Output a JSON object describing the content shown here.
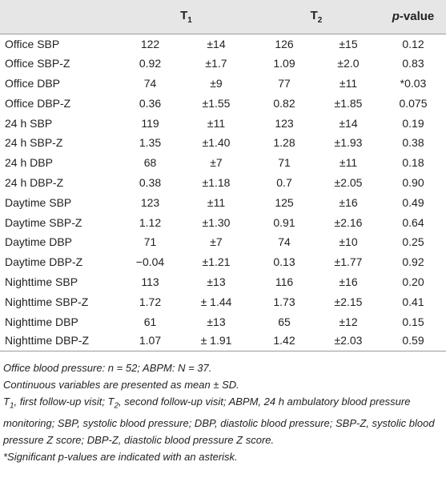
{
  "table": {
    "header": [
      {
        "main": "T",
        "sub": "1"
      },
      {
        "main": "T",
        "sub": "2"
      },
      {
        "italic": "p",
        "rest": "-value"
      }
    ],
    "rows": [
      [
        "Office SBP",
        "122",
        "±14",
        "126",
        "±15",
        "0.12"
      ],
      [
        "Office SBP-Z",
        "0.92",
        "±1.7",
        "1.09",
        "±2.0",
        "0.83"
      ],
      [
        "Office DBP",
        "74",
        "±9",
        "77",
        "±11",
        "*0.03"
      ],
      [
        "Office DBP-Z",
        "0.36",
        "±1.55",
        "0.82",
        "±1.85",
        "0.075"
      ],
      [
        "24 h SBP",
        "119",
        "±11",
        "123",
        "±14",
        "0.19"
      ],
      [
        "24 h SBP-Z",
        "1.35",
        "±1.40",
        "1.28",
        "±1.93",
        "0.38"
      ],
      [
        "24 h DBP",
        "68",
        "±7",
        "71",
        "±11",
        "0.18"
      ],
      [
        "24 h DBP-Z",
        "0.38",
        "±1.18",
        "0.7",
        "±2.05",
        "0.90"
      ],
      [
        "Daytime SBP",
        "123",
        "±11",
        "125",
        "±16",
        "0.49"
      ],
      [
        "Daytime SBP-Z",
        "1.12",
        "±1.30",
        "0.91",
        "±2.16",
        "0.64"
      ],
      [
        "Daytime DBP",
        "71",
        "±7",
        "74",
        "±10",
        "0.25"
      ],
      [
        "Daytime DBP-Z",
        "−0.04",
        "±1.21",
        "0.13",
        "±1.77",
        "0.92"
      ],
      [
        "Nighttime SBP",
        "113",
        "±13",
        "116",
        "±16",
        "0.20"
      ],
      [
        "Nighttime SBP-Z",
        "1.72",
        "± 1.44",
        "1.73",
        "±2.15",
        "0.41"
      ],
      [
        "Nighttime DBP",
        "61",
        "±13",
        "65",
        "±12",
        "0.15"
      ],
      [
        "Nighttime DBP-Z",
        "1.07",
        "± 1.91",
        "1.42",
        "±2.03",
        "0.59"
      ]
    ]
  },
  "notes": [
    [
      "Office blood pressure: n = 52; ABPM: N = 37."
    ],
    [
      "Continuous variables are presented as mean ± SD."
    ],
    [
      "T",
      "1",
      ", first follow-up visit; T",
      "2",
      ", second follow-up visit; ABPM, 24 h ambulatory blood pressure monitoring; SBP, systolic blood pressure; DBP, diastolic blood pressure; SBP-Z, systolic blood pressure Z score; DBP-Z, diastolic blood pressure Z score."
    ],
    [
      "*Significant p-values are indicated with an asterisk."
    ]
  ]
}
